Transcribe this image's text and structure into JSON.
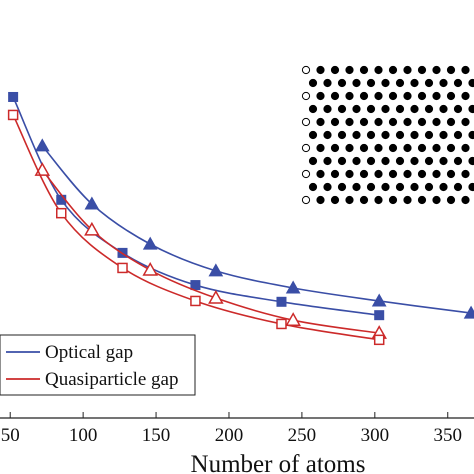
{
  "chart_data": {
    "type": "line",
    "x_label": "Number of atoms",
    "xlim": [
      43,
      368
    ],
    "xticks": [
      50,
      100,
      150,
      200,
      250,
      300,
      350
    ],
    "ylim": [
      0,
      100
    ],
    "legend": "lower left",
    "series": [
      {
        "name": "Optical gap",
        "color": "#3a4ea6",
        "groups": [
          {
            "marker": "triangle",
            "x": [
              72,
              106,
              146,
              191,
              244,
              303,
              366
            ],
            "values": [
              65.1,
              51.2,
              41.6,
              35.2,
              31.1,
              28.0,
              25.1
            ]
          },
          {
            "marker": "square",
            "x": [
              52,
              85,
              127,
              177,
              236,
              303
            ],
            "values": [
              76.8,
              52.2,
              39.5,
              31.8,
              27.8,
              24.6
            ]
          }
        ]
      },
      {
        "name": "Quasiparticle gap",
        "color": "#cc2a2a",
        "groups": [
          {
            "marker": "open-triangle",
            "x": [
              72,
              106,
              146,
              191,
              244,
              303
            ],
            "values": [
              59.3,
              45.0,
              35.4,
              28.7,
              23.4,
              20.3
            ]
          },
          {
            "marker": "open-square",
            "x": [
              52,
              85,
              127,
              177,
              236,
              303
            ],
            "values": [
              72.5,
              49.0,
              35.9,
              28.0,
              22.5,
              18.7
            ]
          }
        ]
      }
    ]
  }
}
